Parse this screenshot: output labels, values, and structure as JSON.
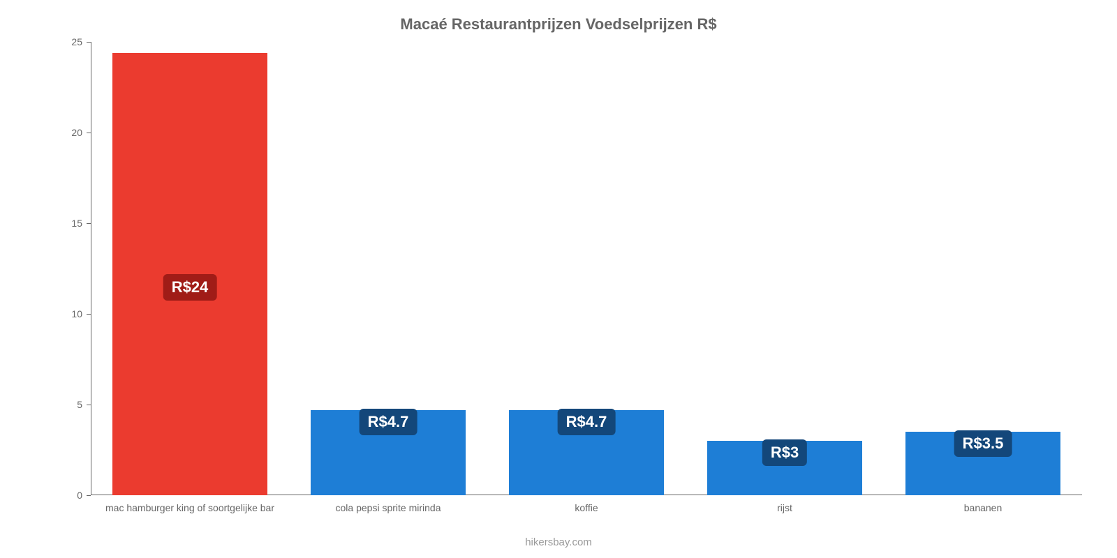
{
  "chart": {
    "type": "bar",
    "title": "Macaé Restaurantprijzen Voedselprijzen R$",
    "title_fontsize": 22,
    "title_color": "#666666",
    "background_color": "#ffffff",
    "axis_color": "#666666",
    "label_color": "#666666",
    "label_fontsize": 14,
    "ylim": [
      0,
      25
    ],
    "yticks": [
      0,
      5,
      10,
      15,
      20,
      25
    ],
    "bar_width_ratio": 0.78,
    "categories": [
      "mac hamburger king of soortgelijke bar",
      "cola pepsi sprite mirinda",
      "koffie",
      "rijst",
      "bananen"
    ],
    "values": [
      24.4,
      4.7,
      4.7,
      3,
      3.5
    ],
    "value_labels": [
      "R$24",
      "R$4.7",
      "R$4.7",
      "R$3",
      "R$3.5"
    ],
    "bar_colors": [
      "#eb3b2f",
      "#1e7ed6",
      "#1e7ed6",
      "#1e7ed6",
      "#1e7ed6"
    ],
    "badge_colors": [
      "#a01c17",
      "#13477a",
      "#13477a",
      "#13477a",
      "#13477a"
    ],
    "badge_text_color": "#ffffff",
    "badge_fontsize": 22,
    "attribution": "hikersbay.com",
    "attribution_color": "#999999"
  }
}
